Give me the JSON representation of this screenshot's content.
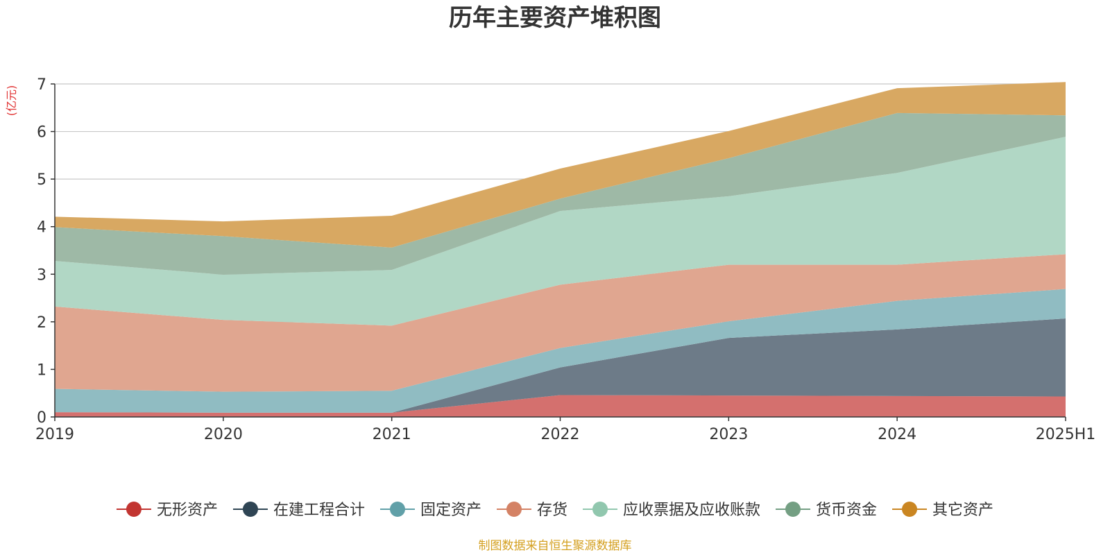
{
  "chart_data": {
    "type": "area",
    "stacked": true,
    "title": "历年主要资产堆积图",
    "unit": "(亿元)",
    "source": "制图数据来自恒生聚源数据库",
    "categories": [
      "2019",
      "2020",
      "2021",
      "2022",
      "2023",
      "2024",
      "2025H1"
    ],
    "ylim": [
      0,
      7
    ],
    "yticks": [
      0,
      1,
      2,
      3,
      4,
      5,
      6,
      7
    ],
    "grid": true,
    "legend_position": "bottom",
    "series": [
      {
        "name": "无形资产",
        "color": "#c23531",
        "fill": "#d4706e",
        "values": [
          0.1,
          0.09,
          0.09,
          0.46,
          0.45,
          0.44,
          0.43
        ]
      },
      {
        "name": "在建工程合计",
        "color": "#2f4554",
        "fill": "#6d7b88",
        "values": [
          0.0,
          0.0,
          0.0,
          0.58,
          1.21,
          1.4,
          1.64
        ]
      },
      {
        "name": "固定资产",
        "color": "#61a0a8",
        "fill": "#90bcc2",
        "values": [
          0.49,
          0.44,
          0.46,
          0.41,
          0.35,
          0.6,
          0.62
        ]
      },
      {
        "name": "存货",
        "color": "#d48265",
        "fill": "#e0a690",
        "values": [
          1.73,
          1.51,
          1.37,
          1.33,
          1.19,
          0.76,
          0.73
        ]
      },
      {
        "name": "应收票据及应收账款",
        "color": "#91c7ae",
        "fill": "#b1d7c5",
        "values": [
          0.96,
          0.95,
          1.17,
          1.55,
          1.44,
          1.93,
          2.47
        ]
      },
      {
        "name": "货币资金",
        "color": "#749f83",
        "fill": "#9eb9a6",
        "values": [
          0.71,
          0.81,
          0.47,
          0.26,
          0.8,
          1.26,
          0.45
        ]
      },
      {
        "name": "其它资产",
        "color": "#ca8622",
        "fill": "#d8a862",
        "values": [
          0.22,
          0.31,
          0.67,
          0.63,
          0.57,
          0.52,
          0.7
        ]
      }
    ]
  }
}
